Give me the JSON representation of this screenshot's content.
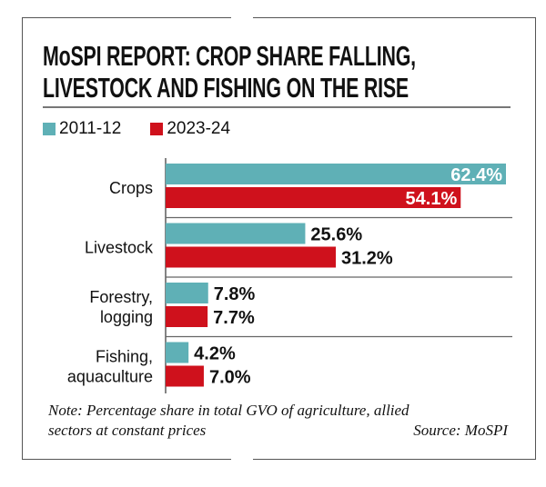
{
  "chart_data": {
    "type": "bar",
    "orientation": "horizontal",
    "title": [
      "MoSPI REPORT: CROP SHARE FALLING,",
      "LIVESTOCK AND FISHING ON THE RISE"
    ],
    "categories": [
      [
        "Crops"
      ],
      [
        "Livestock"
      ],
      [
        "Forestry,",
        "logging"
      ],
      [
        "Fishing,",
        "aquaculture"
      ]
    ],
    "series": [
      {
        "name": "2011-12",
        "color": "#5fb0b6",
        "values": [
          62.4,
          25.6,
          7.8,
          4.2
        ],
        "labels": [
          "62.4%",
          "25.6%",
          "7.8%",
          "4.2%"
        ]
      },
      {
        "name": "2023-24",
        "color": "#cf111c",
        "values": [
          54.1,
          31.2,
          7.7,
          7.0
        ],
        "labels": [
          "54.1%",
          "31.2%",
          "7.7%",
          "7.0%"
        ]
      }
    ],
    "unit": "%",
    "xlim": [
      0,
      62.4
    ],
    "grid": false,
    "legend": "top-left",
    "note": [
      "Note: Percentage share in total GVO of agriculture, allied",
      "sectors at constant prices"
    ],
    "source": "Source: MoSPI"
  }
}
